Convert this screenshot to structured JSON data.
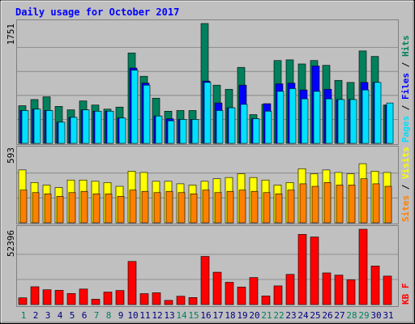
{
  "title": "Daily usage for October 2017",
  "colors": {
    "background": "#c0c0c0",
    "hits": "#00805c",
    "files": "#0000ff",
    "pages": "#00e0ff",
    "visits": "#ffff00",
    "sites": "#ff8000",
    "kbytes": "#ff0000",
    "title": "#0000ff",
    "weekend_label": "#00805c",
    "weekday_label": "#000080"
  },
  "chart_data": [
    {
      "type": "bar",
      "panel": "hits-files-pages",
      "ymax_label": "1751",
      "ymax": 1751,
      "legend": [
        {
          "label": "Pages",
          "color": "#00e0ff"
        },
        {
          "label": "Files",
          "color": "#0000ff"
        },
        {
          "label": "Hits",
          "color": "#00805c"
        }
      ],
      "categories": [
        "1",
        "2",
        "3",
        "4",
        "5",
        "6",
        "7",
        "8",
        "9",
        "10",
        "11",
        "12",
        "13",
        "14",
        "15",
        "16",
        "17",
        "18",
        "19",
        "20",
        "21",
        "22",
        "23",
        "24",
        "25",
        "26",
        "27",
        "28",
        "29",
        "30",
        "31"
      ],
      "series": [
        {
          "name": "Hits",
          "values": [
            550,
            640,
            680,
            540,
            490,
            620,
            560,
            500,
            530,
            1320,
            980,
            660,
            470,
            480,
            480,
            1751,
            850,
            790,
            1110,
            420,
            570,
            1210,
            1220,
            1160,
            1210,
            1140,
            920,
            890,
            1350,
            1270,
            560
          ]
        },
        {
          "name": "Files",
          "values": [
            480,
            500,
            480,
            310,
            380,
            490,
            470,
            470,
            370,
            1100,
            880,
            400,
            360,
            350,
            350,
            910,
            590,
            520,
            850,
            360,
            580,
            870,
            880,
            780,
            1130,
            790,
            640,
            640,
            890,
            890,
            560
          ]
        },
        {
          "name": "Pages",
          "values": [
            480,
            500,
            480,
            310,
            380,
            490,
            470,
            470,
            370,
            1070,
            850,
            400,
            330,
            350,
            350,
            890,
            480,
            520,
            570,
            360,
            470,
            760,
            800,
            650,
            760,
            650,
            640,
            640,
            780,
            890,
            590
          ]
        }
      ]
    },
    {
      "type": "bar",
      "panel": "visits-sites",
      "ymax_label": "593",
      "ymax": 593,
      "legend": [
        {
          "label": "Sites",
          "color": "#ff8000"
        },
        {
          "label": "Visits",
          "color": "#ffff00"
        }
      ],
      "categories": [
        "1",
        "2",
        "3",
        "4",
        "5",
        "6",
        "7",
        "8",
        "9",
        "10",
        "11",
        "12",
        "13",
        "14",
        "15",
        "16",
        "17",
        "18",
        "19",
        "20",
        "21",
        "22",
        "23",
        "24",
        "25",
        "26",
        "27",
        "28",
        "29",
        "30",
        "31"
      ],
      "series": [
        {
          "name": "Visits",
          "values": [
            420,
            320,
            300,
            280,
            340,
            340,
            330,
            320,
            290,
            410,
            400,
            330,
            330,
            310,
            300,
            330,
            350,
            360,
            390,
            360,
            340,
            300,
            320,
            430,
            390,
            420,
            400,
            390,
            470,
            410,
            400
          ]
        },
        {
          "name": "Sites",
          "values": [
            260,
            240,
            230,
            210,
            240,
            250,
            230,
            230,
            210,
            260,
            250,
            240,
            250,
            240,
            230,
            260,
            240,
            250,
            260,
            250,
            240,
            230,
            260,
            310,
            290,
            320,
            300,
            300,
            350,
            310,
            290
          ]
        }
      ]
    },
    {
      "type": "bar",
      "panel": "kbytes",
      "ymax_label": "52396",
      "ymax": 52396,
      "legend": [
        {
          "label": "KB F",
          "color": "#ff0000"
        }
      ],
      "categories": [
        "1",
        "2",
        "3",
        "4",
        "5",
        "6",
        "7",
        "8",
        "9",
        "10",
        "11",
        "12",
        "13",
        "14",
        "15",
        "16",
        "17",
        "18",
        "19",
        "20",
        "21",
        "22",
        "23",
        "24",
        "25",
        "26",
        "27",
        "28",
        "29",
        "30",
        "31"
      ],
      "series": [
        {
          "name": "KB F",
          "values": [
            4700,
            12400,
            10300,
            9900,
            7700,
            10800,
            3700,
            8700,
            9800,
            30000,
            7600,
            8200,
            2900,
            5800,
            4900,
            33500,
            22500,
            15500,
            12200,
            18800,
            6000,
            13000,
            21000,
            48800,
            47000,
            22000,
            20500,
            17200,
            52396,
            26800,
            19800
          ]
        }
      ]
    }
  ],
  "x_labels": [
    {
      "text": "1",
      "weekend": true
    },
    {
      "text": "2",
      "weekend": false
    },
    {
      "text": "3",
      "weekend": false
    },
    {
      "text": "4",
      "weekend": false
    },
    {
      "text": "5",
      "weekend": false
    },
    {
      "text": "6",
      "weekend": false
    },
    {
      "text": "7",
      "weekend": true
    },
    {
      "text": "8",
      "weekend": true
    },
    {
      "text": "9",
      "weekend": false
    },
    {
      "text": "10",
      "weekend": false
    },
    {
      "text": "11",
      "weekend": false
    },
    {
      "text": "12",
      "weekend": false
    },
    {
      "text": "13",
      "weekend": false
    },
    {
      "text": "14",
      "weekend": true
    },
    {
      "text": "15",
      "weekend": true
    },
    {
      "text": "16",
      "weekend": false
    },
    {
      "text": "17",
      "weekend": false
    },
    {
      "text": "18",
      "weekend": false
    },
    {
      "text": "19",
      "weekend": false
    },
    {
      "text": "20",
      "weekend": false
    },
    {
      "text": "21",
      "weekend": true
    },
    {
      "text": "22",
      "weekend": true
    },
    {
      "text": "23",
      "weekend": false
    },
    {
      "text": "24",
      "weekend": false
    },
    {
      "text": "25",
      "weekend": false
    },
    {
      "text": "26",
      "weekend": false
    },
    {
      "text": "27",
      "weekend": false
    },
    {
      "text": "28",
      "weekend": true
    },
    {
      "text": "29",
      "weekend": true
    },
    {
      "text": "30",
      "weekend": false
    },
    {
      "text": "31",
      "weekend": false
    }
  ]
}
